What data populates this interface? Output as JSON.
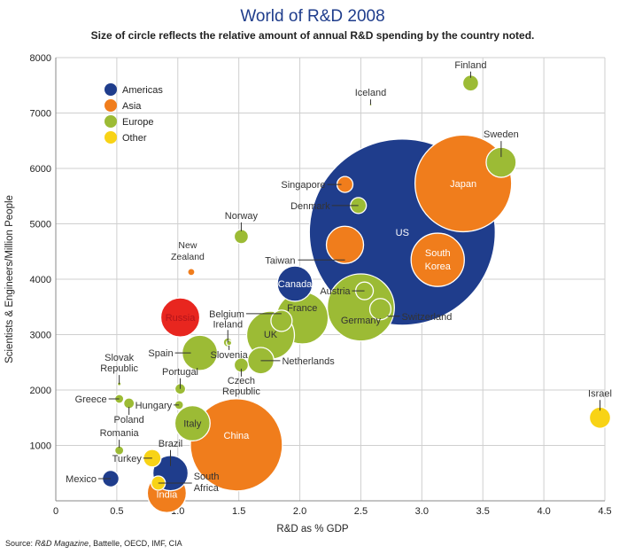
{
  "chart_data": {
    "type": "scatter",
    "subtype": "bubble",
    "title": "World of R&D 2008",
    "subtitle": "Size of circle reflects the relative amount of annual R&D spending by the country noted.",
    "xlabel": "R&D as % GDP",
    "ylabel": "Scientists & Engineers/Million People",
    "xlim": [
      0,
      4.5
    ],
    "ylim": [
      0,
      8000
    ],
    "x_ticks": [
      "0",
      "0.5",
      "1.0",
      "1.5",
      "2.0",
      "2.5",
      "3.0",
      "3.5",
      "4.0",
      "4.5"
    ],
    "y_ticks": [
      "1000",
      "2000",
      "3000",
      "4000",
      "5000",
      "6000",
      "7000",
      "8000"
    ],
    "grid": true,
    "legend_position": "top-left",
    "legend": [
      {
        "name": "Americas",
        "color": "#1f3d8c"
      },
      {
        "name": "Asia",
        "color": "#f07d1c"
      },
      {
        "name": "Europe",
        "color": "#9cbb35"
      },
      {
        "name": "Other",
        "color": "#f8d316"
      }
    ],
    "size_note": "relative annual R&D spending (US = 100)",
    "points": [
      {
        "name": "US",
        "region": "Americas",
        "x": 2.84,
        "y": 4850,
        "size": 100
      },
      {
        "name": "Japan",
        "region": "Asia",
        "x": 3.34,
        "y": 5730,
        "size": 27
      },
      {
        "name": "China",
        "region": "Asia",
        "x": 1.48,
        "y": 1010,
        "size": 24.5
      },
      {
        "name": "Germany",
        "region": "Europe",
        "x": 2.5,
        "y": 3490,
        "size": 13
      },
      {
        "name": "France",
        "region": "Europe",
        "x": 2.02,
        "y": 3300,
        "size": 7.8
      },
      {
        "name": "South Korea",
        "region": "Asia",
        "x": 3.13,
        "y": 4350,
        "size": 8.2
      },
      {
        "name": "UK",
        "region": "Europe",
        "x": 1.76,
        "y": 2990,
        "size": 6.6
      },
      {
        "name": "Russia",
        "region": "Russia",
        "x": 1.02,
        "y": 3310,
        "size": 4.4,
        "color": "#e8261f"
      },
      {
        "name": "India",
        "region": "Asia",
        "x": 0.91,
        "y": 140,
        "size": 4.4
      },
      {
        "name": "Taiwan",
        "region": "Asia",
        "x": 2.37,
        "y": 4620,
        "size": 4.0
      },
      {
        "name": "Canada",
        "region": "Americas",
        "x": 1.96,
        "y": 3920,
        "size": 3.6
      },
      {
        "name": "Italy",
        "region": "Europe",
        "x": 1.12,
        "y": 1400,
        "size": 3.6
      },
      {
        "name": "Spain",
        "region": "Europe",
        "x": 1.18,
        "y": 2670,
        "size": 3.6
      },
      {
        "name": "Brazil",
        "region": "Americas",
        "x": 0.94,
        "y": 500,
        "size": 3.6
      },
      {
        "name": "Sweden",
        "region": "Europe",
        "x": 3.65,
        "y": 6110,
        "size": 2.6
      },
      {
        "name": "Netherlands",
        "region": "Europe",
        "x": 1.68,
        "y": 2530,
        "size": 2.0
      },
      {
        "name": "Switzerland",
        "region": "Europe",
        "x": 2.66,
        "y": 3460,
        "size": 1.3
      },
      {
        "name": "Belgium",
        "region": "Europe",
        "x": 1.85,
        "y": 3250,
        "size": 1.3
      },
      {
        "name": "Israel",
        "region": "Other",
        "x": 4.46,
        "y": 1500,
        "size": 1.3
      },
      {
        "name": "Austria",
        "region": "Europe",
        "x": 2.53,
        "y": 3790,
        "size": 0.9
      },
      {
        "name": "Turkey",
        "region": "Other",
        "x": 0.79,
        "y": 770,
        "size": 0.9
      },
      {
        "name": "Mexico",
        "region": "Americas",
        "x": 0.45,
        "y": 400,
        "size": 0.8
      },
      {
        "name": "Finland",
        "region": "Europe",
        "x": 3.4,
        "y": 7540,
        "size": 0.73
      },
      {
        "name": "Singapore",
        "region": "Asia",
        "x": 2.37,
        "y": 5710,
        "size": 0.73
      },
      {
        "name": "Denmark",
        "region": "Europe",
        "x": 2.48,
        "y": 5330,
        "size": 0.73
      },
      {
        "name": "Norway",
        "region": "Europe",
        "x": 1.52,
        "y": 4770,
        "size": 0.58
      },
      {
        "name": "Czech Republic",
        "region": "Europe",
        "x": 1.52,
        "y": 2450,
        "size": 0.58
      },
      {
        "name": "South Africa",
        "region": "Other",
        "x": 0.84,
        "y": 320,
        "size": 0.58
      },
      {
        "name": "Portugal",
        "region": "Europe",
        "x": 1.02,
        "y": 2020,
        "size": 0.33
      },
      {
        "name": "Poland",
        "region": "Europe",
        "x": 0.6,
        "y": 1760,
        "size": 0.33
      },
      {
        "name": "Ireland",
        "region": "Europe",
        "x": 1.41,
        "y": 2860,
        "size": 0.23
      },
      {
        "name": "Hungary",
        "region": "Europe",
        "x": 1.01,
        "y": 1730,
        "size": 0.23
      },
      {
        "name": "Greece",
        "region": "Europe",
        "x": 0.52,
        "y": 1840,
        "size": 0.23
      },
      {
        "name": "Romania",
        "region": "Europe",
        "x": 0.52,
        "y": 910,
        "size": 0.23
      },
      {
        "name": "New Zealand",
        "region": "Asia",
        "x": 1.11,
        "y": 4130,
        "size": 0.15
      },
      {
        "name": "Slovenia",
        "region": "Europe",
        "x": 1.42,
        "y": 2850,
        "size": 0.08
      },
      {
        "name": "Slovak Republic",
        "region": "Europe",
        "x": 0.52,
        "y": 2110,
        "size": 0.04
      },
      {
        "name": "Iceland",
        "region": "Europe",
        "x": 2.58,
        "y": 7150,
        "size": 0.02
      }
    ],
    "source": {
      "prefix": "Source: ",
      "italic": "R&D Magazine",
      "rest": ", Battelle, OECD, IMF, CIA"
    }
  }
}
